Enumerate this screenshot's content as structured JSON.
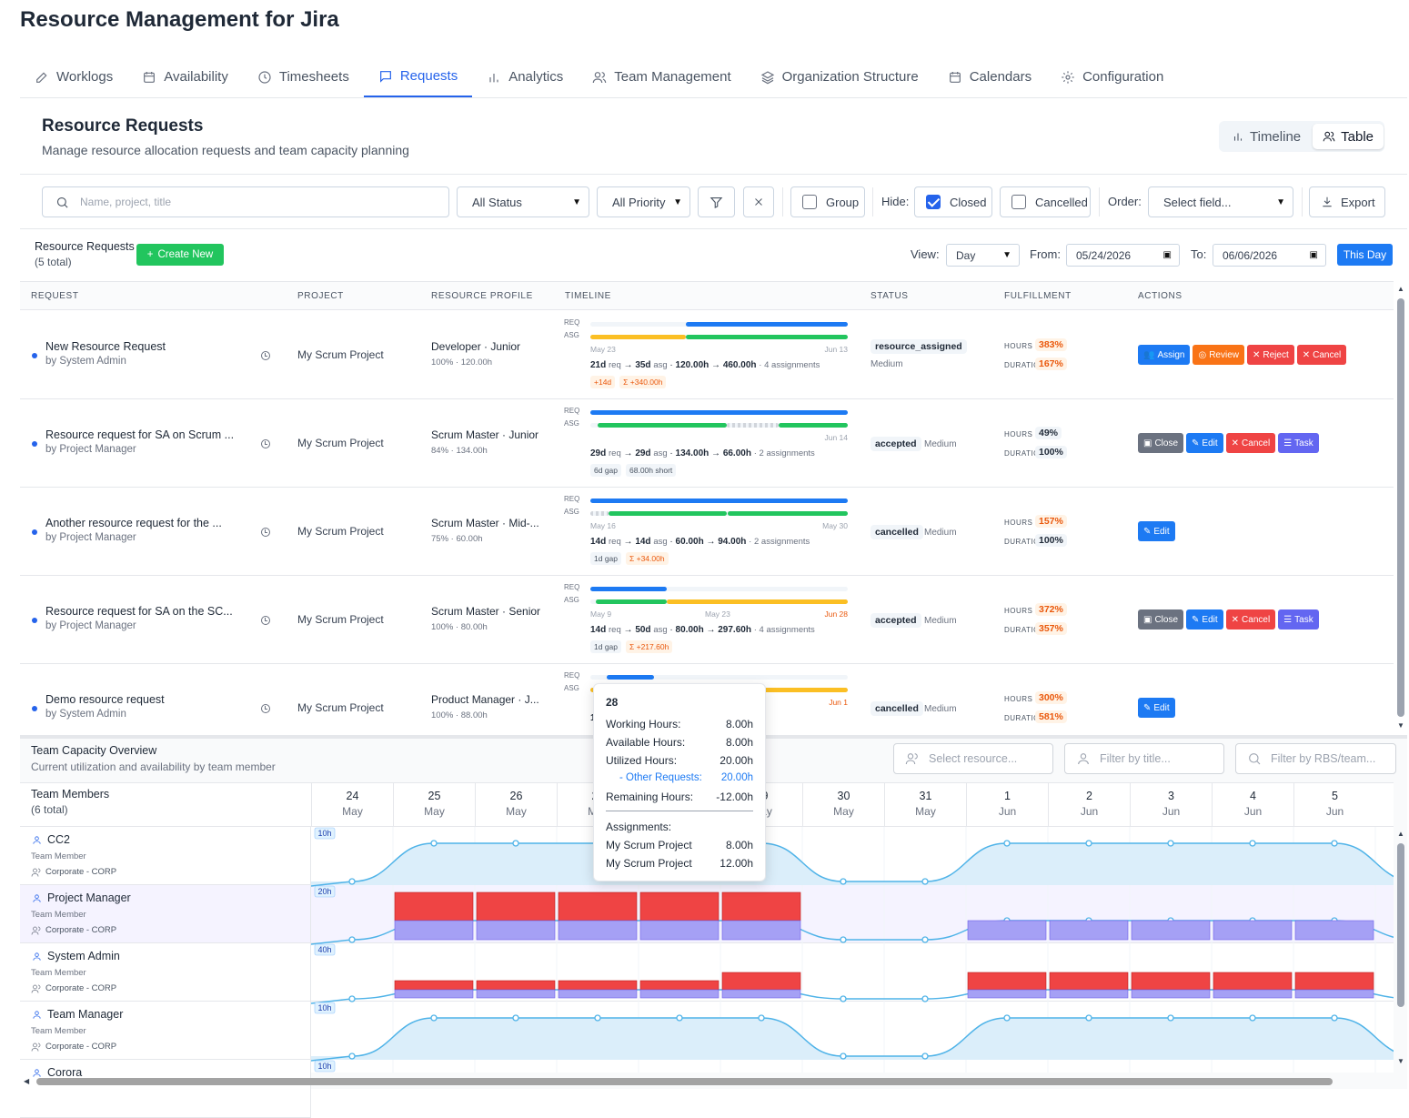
{
  "app": {
    "title": "Resource Management for Jira"
  },
  "tabs": [
    {
      "label": "Worklogs",
      "icon": "pencil-icon"
    },
    {
      "label": "Availability",
      "icon": "calendar-icon"
    },
    {
      "label": "Timesheets",
      "icon": "clock-icon"
    },
    {
      "label": "Requests",
      "icon": "message-icon",
      "active": true
    },
    {
      "label": "Analytics",
      "icon": "bar-chart-icon"
    },
    {
      "label": "Team Management",
      "icon": "users-icon"
    },
    {
      "label": "Organization Structure",
      "icon": "layers-icon"
    },
    {
      "label": "Calendars",
      "icon": "calendar-icon"
    },
    {
      "label": "Configuration",
      "icon": "gear-icon"
    }
  ],
  "header": {
    "title": "Resource Requests",
    "subtitle": "Manage resource allocation requests and team capacity planning",
    "view_toggle": {
      "timeline": "Timeline",
      "table": "Table",
      "active": "Table"
    }
  },
  "filters": {
    "search_placeholder": "Name, project, title",
    "status": "All Status",
    "priority": "All Priority",
    "group_label": "Group",
    "hide_label": "Hide:",
    "closed_label": "Closed",
    "closed_checked": true,
    "cancelled_label": "Cancelled",
    "order_label": "Order:",
    "order_placeholder": "Select field...",
    "export_label": "Export"
  },
  "list": {
    "title": "Resource Requests",
    "count": "(5 total)",
    "create_label": "Create New",
    "view_label": "View:",
    "view_value": "Day",
    "from_label": "From:",
    "from_value": "05/24/2026",
    "to_label": "To:",
    "to_value": "06/06/2026",
    "this_day": "This Day"
  },
  "columns": [
    "REQUEST",
    "PROJECT",
    "RESOURCE PROFILE",
    "TIMELINE",
    "STATUS",
    "FULFILLMENT",
    "ACTIONS"
  ],
  "timeline_labels": {
    "req": "REQ",
    "asg": "ASG",
    "hours": "HOURS",
    "duration": "DURATION"
  },
  "rows": [
    {
      "title": "New Resource Request",
      "by": "by System Admin",
      "project": "My Scrum Project",
      "profile": "Developer · Junior",
      "profile_sub": "100% · 120.00h",
      "date_start": "May 23",
      "date_mid": "",
      "date_end": "Jun 13",
      "date_end_orange": false,
      "req_days": "21d",
      "asg_days": "35d",
      "req_hours": "120.00h",
      "asg_hours": "460.00h",
      "assignments": "4 assignments",
      "chips": [
        {
          "text": "+14d",
          "orange": true
        },
        {
          "text": "Σ +340.00h",
          "orange": true
        }
      ],
      "status": "resource_assigned",
      "priority": "Medium",
      "priority_below": true,
      "hours_pct": "383%",
      "hours_orange": true,
      "duration_pct": "167%",
      "duration_orange": true,
      "actions": [
        {
          "label": "Assign",
          "color": "blue"
        },
        {
          "label": "Review",
          "color": "orange"
        },
        {
          "label": "Reject",
          "color": "red"
        },
        {
          "label": "Cancel",
          "color": "red"
        }
      ]
    },
    {
      "title": "Resource request for SA on Scrum ...",
      "by": "by Project Manager",
      "project": "My Scrum Project",
      "profile": "Scrum Master · Junior",
      "profile_sub": "84% · 134.00h",
      "date_start": "",
      "date_mid": "",
      "date_end": "Jun 14",
      "date_end_orange": false,
      "req_days": "29d",
      "asg_days": "29d",
      "req_hours": "134.00h",
      "asg_hours": "66.00h",
      "assignments": "2 assignments",
      "chips": [
        {
          "text": "6d gap",
          "orange": false
        },
        {
          "text": "68.00h short",
          "orange": false
        }
      ],
      "status": "accepted",
      "priority": "Medium",
      "priority_below": false,
      "hours_pct": "49%",
      "hours_orange": false,
      "duration_pct": "100%",
      "duration_orange": false,
      "actions": [
        {
          "label": "Close",
          "color": "gray"
        },
        {
          "label": "Edit",
          "color": "blue"
        },
        {
          "label": "Cancel",
          "color": "red"
        },
        {
          "label": "Task",
          "color": "indigo"
        }
      ]
    },
    {
      "title": "Another resource request for the ...",
      "by": "by Project Manager",
      "project": "My Scrum Project",
      "profile": "Scrum Master · Mid-...",
      "profile_sub": "75% · 60.00h",
      "date_start": "May 16",
      "date_mid": "",
      "date_end": "May 30",
      "date_end_orange": false,
      "req_days": "14d",
      "asg_days": "14d",
      "req_hours": "60.00h",
      "asg_hours": "94.00h",
      "assignments": "2 assignments",
      "chips": [
        {
          "text": "1d gap",
          "orange": false
        },
        {
          "text": "Σ +34.00h",
          "orange": true
        }
      ],
      "status": "cancelled",
      "priority": "Medium",
      "priority_below": false,
      "hours_pct": "157%",
      "hours_orange": true,
      "duration_pct": "100%",
      "duration_orange": false,
      "actions": [
        {
          "label": "Edit",
          "color": "blue"
        }
      ]
    },
    {
      "title": "Resource request for SA on the SC...",
      "by": "by Project Manager",
      "project": "My Scrum Project",
      "profile": "Scrum Master · Senior",
      "profile_sub": "100% · 80.00h",
      "date_start": "May 9",
      "date_mid": "May 23",
      "date_end": "Jun 28",
      "date_end_orange": true,
      "req_days": "14d",
      "asg_days": "50d",
      "req_hours": "80.00h",
      "asg_hours": "297.60h",
      "assignments": "4 assignments",
      "chips": [
        {
          "text": "1d gap",
          "orange": false
        },
        {
          "text": "Σ +217.60h",
          "orange": true
        }
      ],
      "status": "accepted",
      "priority": "Medium",
      "priority_below": false,
      "hours_pct": "372%",
      "hours_orange": true,
      "duration_pct": "357%",
      "duration_orange": true,
      "actions": [
        {
          "label": "Close",
          "color": "gray"
        },
        {
          "label": "Edit",
          "color": "blue"
        },
        {
          "label": "Cancel",
          "color": "red"
        },
        {
          "label": "Task",
          "color": "indigo"
        }
      ]
    },
    {
      "title": "Demo resource request",
      "by": "by System Admin",
      "project": "My Scrum Project",
      "profile": "Product Manager · J...",
      "profile_sub": "100% · 88.00h",
      "date_start": "",
      "date_mid": "",
      "date_end": "Jun 1",
      "date_end_orange": true,
      "req_days": "1",
      "asg_days": "",
      "req_hours": "",
      "asg_hours": "",
      "assignments": "",
      "chips": [],
      "status": "cancelled",
      "priority": "Medium",
      "priority_below": false,
      "hours_pct": "300%",
      "hours_orange": true,
      "duration_pct": "581%",
      "duration_orange": true,
      "actions": [
        {
          "label": "Edit",
          "color": "blue"
        }
      ]
    }
  ],
  "capacity": {
    "title": "Team Capacity Overview",
    "subtitle": "Current utilization and availability by team member",
    "resource_placeholder": "Select resource...",
    "title_placeholder": "Filter by title...",
    "rbs_placeholder": "Filter by RBS/team...",
    "members_label": "Team Members",
    "members_count": "(6 total)",
    "days": [
      {
        "n": "24",
        "m": "May"
      },
      {
        "n": "25",
        "m": "May"
      },
      {
        "n": "26",
        "m": "May"
      },
      {
        "n": "27",
        "m": "May"
      },
      {
        "n": "28",
        "m": "May"
      },
      {
        "n": "29",
        "m": "May"
      },
      {
        "n": "30",
        "m": "May"
      },
      {
        "n": "31",
        "m": "May"
      },
      {
        "n": "1",
        "m": "Jun"
      },
      {
        "n": "2",
        "m": "Jun"
      },
      {
        "n": "3",
        "m": "Jun"
      },
      {
        "n": "4",
        "m": "Jun"
      },
      {
        "n": "5",
        "m": "Jun"
      }
    ],
    "members": [
      {
        "name": "CC2",
        "role": "Team Member",
        "org": "Corporate - CORP",
        "scale": "10h"
      },
      {
        "name": "Project Manager",
        "role": "Team Member",
        "org": "Corporate - CORP",
        "scale": "20h"
      },
      {
        "name": "System Admin",
        "role": "Team Member",
        "org": "Corporate - CORP",
        "scale": "40h"
      },
      {
        "name": "Team Manager",
        "role": "Team Member",
        "org": "Corporate - CORP",
        "scale": "10h"
      },
      {
        "name": "Corora",
        "role": "",
        "org": "",
        "scale": "10h"
      }
    ],
    "colors": {
      "utilized": "#ef4444",
      "assigned": "#a5a0f5",
      "available_fill": "#dbeefa",
      "line": "#4fb3e8"
    }
  },
  "tooltip": {
    "day": "28",
    "working_label": "Working Hours:",
    "working": "8.00h",
    "available_label": "Available Hours:",
    "available": "8.00h",
    "utilized_label": "Utilized Hours:",
    "utilized": "20.00h",
    "other_label": "- Other Requests:",
    "other": "20.00h",
    "remaining_label": "Remaining Hours:",
    "remaining": "-12.00h",
    "assignments_label": "Assignments:",
    "assignments": [
      {
        "project": "My Scrum Project",
        "hours": "8.00h"
      },
      {
        "project": "My Scrum Project",
        "hours": "12.00h"
      }
    ]
  }
}
